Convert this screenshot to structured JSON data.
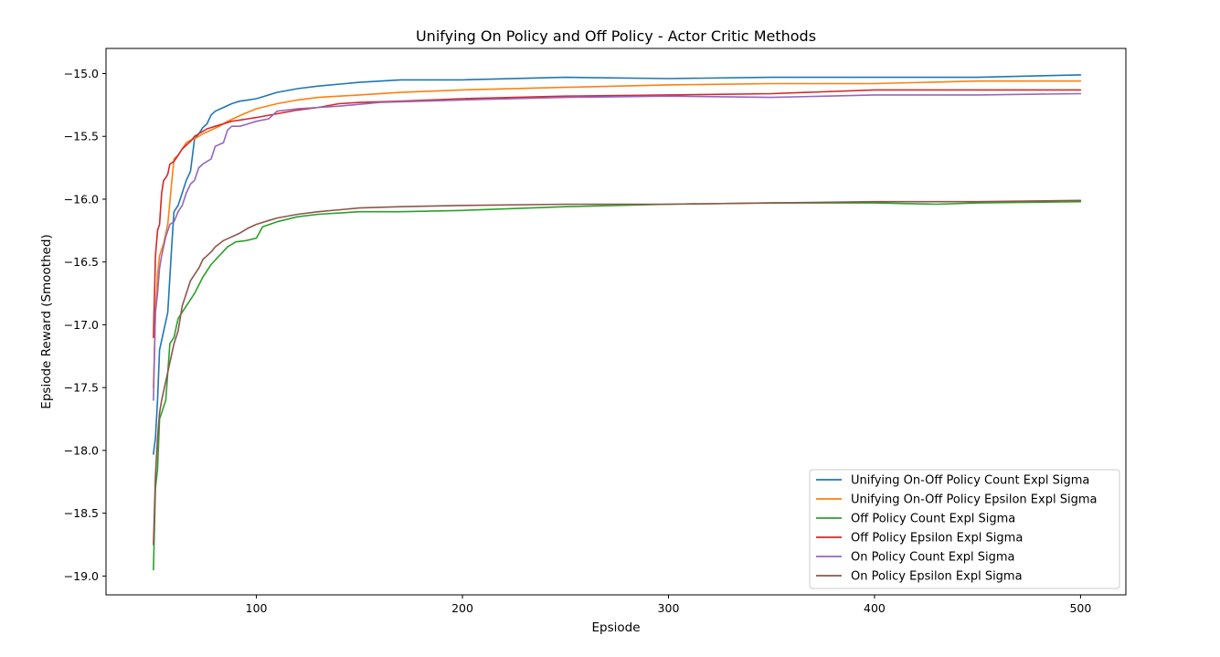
{
  "chart_data": {
    "type": "line",
    "title": "Unifying On Policy and Off Policy - Actor Critic Methods",
    "xlabel": "Epsiode",
    "ylabel": "Epsiode Reward (Smoothed)",
    "xlim": [
      27,
      522
    ],
    "ylim": [
      -19.15,
      -14.8
    ],
    "xticks": [
      100,
      200,
      300,
      400,
      500
    ],
    "xtick_labels": [
      "100",
      "200",
      "300",
      "400",
      "500"
    ],
    "yticks": [
      -19.0,
      -18.5,
      -18.0,
      -17.5,
      -17.0,
      -16.5,
      -16.0,
      -15.5,
      -15.0
    ],
    "ytick_labels": [
      "−19.0",
      "−18.5",
      "−18.0",
      "−17.5",
      "−17.0",
      "−16.5",
      "−16.0",
      "−15.5",
      "−15.0"
    ],
    "grid": false,
    "legend_position": "lower right",
    "series": [
      {
        "name": "Unifying On-Off Policy Count Expl Sigma",
        "color": "#1f77b4",
        "x": [
          50,
          51,
          52,
          53,
          55,
          57,
          59,
          60,
          62,
          64,
          66,
          68,
          70,
          72,
          74,
          76,
          78,
          80,
          84,
          88,
          92,
          96,
          100,
          106,
          110,
          120,
          130,
          150,
          170,
          200,
          250,
          300,
          350,
          400,
          450,
          500
        ],
        "y": [
          -18.03,
          -17.9,
          -17.6,
          -17.2,
          -17.05,
          -16.9,
          -16.35,
          -16.1,
          -16.05,
          -15.95,
          -15.85,
          -15.78,
          -15.52,
          -15.48,
          -15.43,
          -15.4,
          -15.33,
          -15.3,
          -15.27,
          -15.24,
          -15.22,
          -15.21,
          -15.2,
          -15.17,
          -15.15,
          -15.12,
          -15.1,
          -15.07,
          -15.05,
          -15.05,
          -15.03,
          -15.04,
          -15.03,
          -15.03,
          -15.03,
          -15.01
        ]
      },
      {
        "name": "Unifying On-Off Policy Epsilon Expl Sigma",
        "color": "#ff7f0e",
        "x": [
          50,
          51,
          52,
          53,
          55,
          57,
          59,
          60,
          62,
          64,
          66,
          68,
          70,
          74,
          78,
          82,
          86,
          90,
          94,
          100,
          110,
          120,
          130,
          150,
          170,
          200,
          250,
          300,
          350,
          400,
          450,
          500
        ],
        "y": [
          -17.5,
          -16.9,
          -16.6,
          -16.45,
          -16.35,
          -16.2,
          -15.85,
          -15.68,
          -15.65,
          -15.6,
          -15.55,
          -15.53,
          -15.52,
          -15.48,
          -15.45,
          -15.42,
          -15.38,
          -15.35,
          -15.32,
          -15.28,
          -15.24,
          -15.21,
          -15.19,
          -15.17,
          -15.15,
          -15.13,
          -15.11,
          -15.09,
          -15.08,
          -15.08,
          -15.06,
          -15.06
        ]
      },
      {
        "name": "Off Policy Count Expl Sigma",
        "color": "#2ca02c",
        "x": [
          50,
          51,
          52,
          53,
          54,
          56,
          58,
          60,
          62,
          64,
          66,
          70,
          74,
          78,
          82,
          86,
          90,
          95,
          100,
          103,
          110,
          120,
          130,
          150,
          170,
          200,
          250,
          300,
          350,
          400,
          430,
          450,
          500
        ],
        "y": [
          -18.95,
          -18.3,
          -18.15,
          -17.75,
          -17.7,
          -17.6,
          -17.15,
          -17.1,
          -16.95,
          -16.9,
          -16.85,
          -16.75,
          -16.62,
          -16.52,
          -16.45,
          -16.38,
          -16.34,
          -16.33,
          -16.31,
          -16.22,
          -16.18,
          -16.14,
          -16.12,
          -16.1,
          -16.1,
          -16.09,
          -16.06,
          -16.04,
          -16.03,
          -16.03,
          -16.04,
          -16.03,
          -16.02
        ]
      },
      {
        "name": "Off Policy Epsilon Expl Sigma",
        "color": "#d62728",
        "x": [
          50,
          51,
          52,
          53,
          54,
          55,
          56,
          57,
          58,
          60,
          62,
          64,
          66,
          68,
          70,
          72,
          74,
          76,
          78,
          80,
          84,
          88,
          92,
          96,
          100,
          110,
          120,
          130,
          140,
          150,
          170,
          200,
          250,
          300,
          350,
          400,
          450,
          500
        ],
        "y": [
          -17.1,
          -16.45,
          -16.25,
          -16.2,
          -15.95,
          -15.85,
          -15.83,
          -15.8,
          -15.72,
          -15.7,
          -15.65,
          -15.6,
          -15.57,
          -15.54,
          -15.5,
          -15.48,
          -15.46,
          -15.44,
          -15.43,
          -15.42,
          -15.4,
          -15.38,
          -15.37,
          -15.36,
          -15.35,
          -15.32,
          -15.29,
          -15.27,
          -15.24,
          -15.23,
          -15.22,
          -15.2,
          -15.18,
          -15.17,
          -15.16,
          -15.13,
          -15.13,
          -15.13
        ]
      },
      {
        "name": "On Policy Count Expl Sigma",
        "color": "#9467bd",
        "x": [
          50,
          51,
          52,
          53,
          54,
          56,
          58,
          60,
          62,
          64,
          66,
          68,
          70,
          72,
          74,
          76,
          78,
          80,
          84,
          86,
          88,
          92,
          96,
          100,
          106,
          110,
          120,
          140,
          160,
          200,
          250,
          300,
          350,
          400,
          450,
          500
        ],
        "y": [
          -17.6,
          -16.9,
          -16.75,
          -16.55,
          -16.45,
          -16.3,
          -16.2,
          -16.18,
          -16.1,
          -16.05,
          -15.95,
          -15.88,
          -15.85,
          -15.75,
          -15.72,
          -15.7,
          -15.68,
          -15.58,
          -15.55,
          -15.45,
          -15.42,
          -15.42,
          -15.4,
          -15.38,
          -15.36,
          -15.3,
          -15.28,
          -15.26,
          -15.23,
          -15.21,
          -15.19,
          -15.18,
          -15.19,
          -15.17,
          -15.17,
          -15.16
        ]
      },
      {
        "name": "On Policy Epsilon Expl Sigma",
        "color": "#8c564b",
        "x": [
          50,
          51,
          52,
          53,
          54,
          56,
          58,
          60,
          62,
          64,
          66,
          68,
          70,
          72,
          74,
          76,
          78,
          80,
          84,
          88,
          92,
          96,
          100,
          106,
          110,
          120,
          130,
          150,
          170,
          200,
          250,
          300,
          350,
          400,
          450,
          500
        ],
        "y": [
          -18.75,
          -18.2,
          -17.9,
          -17.7,
          -17.6,
          -17.45,
          -17.3,
          -17.15,
          -17.05,
          -16.85,
          -16.75,
          -16.65,
          -16.6,
          -16.55,
          -16.48,
          -16.45,
          -16.42,
          -16.38,
          -16.33,
          -16.3,
          -16.27,
          -16.23,
          -16.2,
          -16.17,
          -16.15,
          -16.12,
          -16.1,
          -16.07,
          -16.06,
          -16.05,
          -16.04,
          -16.04,
          -16.03,
          -16.02,
          -16.02,
          -16.01
        ]
      }
    ]
  }
}
